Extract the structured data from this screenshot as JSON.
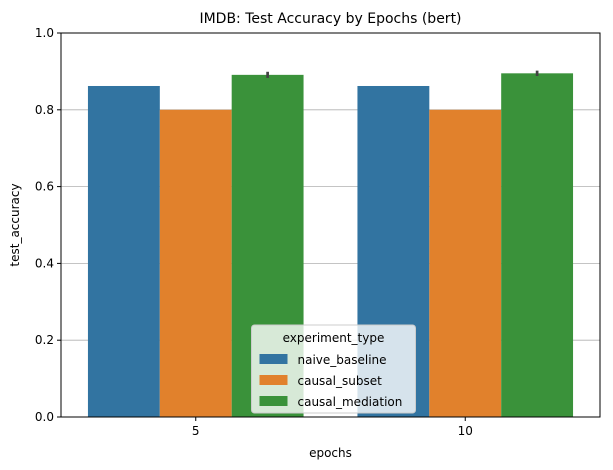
{
  "chart_data": {
    "type": "bar",
    "title": "IMDB: Test Accuracy by Epochs (bert)",
    "xlabel": "epochs",
    "ylabel": "test_accuracy",
    "categories": [
      "5",
      "10"
    ],
    "ylim": [
      0,
      1.0
    ],
    "yticks": [
      "0.0",
      "0.2",
      "0.4",
      "0.6",
      "0.8",
      "1.0"
    ],
    "grid": "y",
    "legend": {
      "title": "experiment_type",
      "placement": "lower-center"
    },
    "series": [
      {
        "name": "naive_baseline",
        "color": "#3274a1",
        "values": [
          0.862,
          0.862
        ],
        "error": [
          0,
          0
        ]
      },
      {
        "name": "causal_subset",
        "color": "#e1812c",
        "values": [
          0.8,
          0.8
        ],
        "error": [
          0,
          0
        ]
      },
      {
        "name": "causal_mediation",
        "color": "#3a923a",
        "values": [
          0.891,
          0.895
        ],
        "error": [
          0.008,
          0.007
        ]
      }
    ]
  }
}
